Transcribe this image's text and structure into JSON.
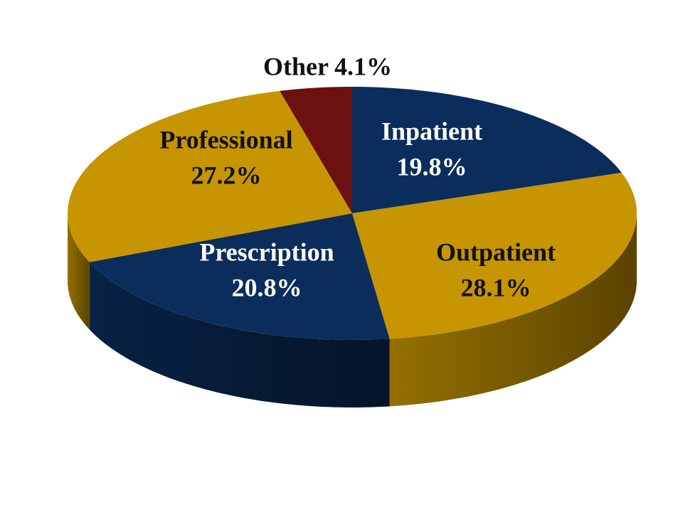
{
  "chart_data": {
    "type": "pie",
    "categories": [
      "Inpatient",
      "Outpatient",
      "Prescription",
      "Professional",
      "Other"
    ],
    "values": [
      19.8,
      28.1,
      20.8,
      27.2,
      4.1
    ],
    "value_labels": [
      "19.8%",
      "28.1%",
      "20.8%",
      "27.2%",
      "4.1%"
    ],
    "colors": [
      "#0b2d5b",
      "#c79500",
      "#0b2d5b",
      "#c79500",
      "#6c1010"
    ]
  }
}
